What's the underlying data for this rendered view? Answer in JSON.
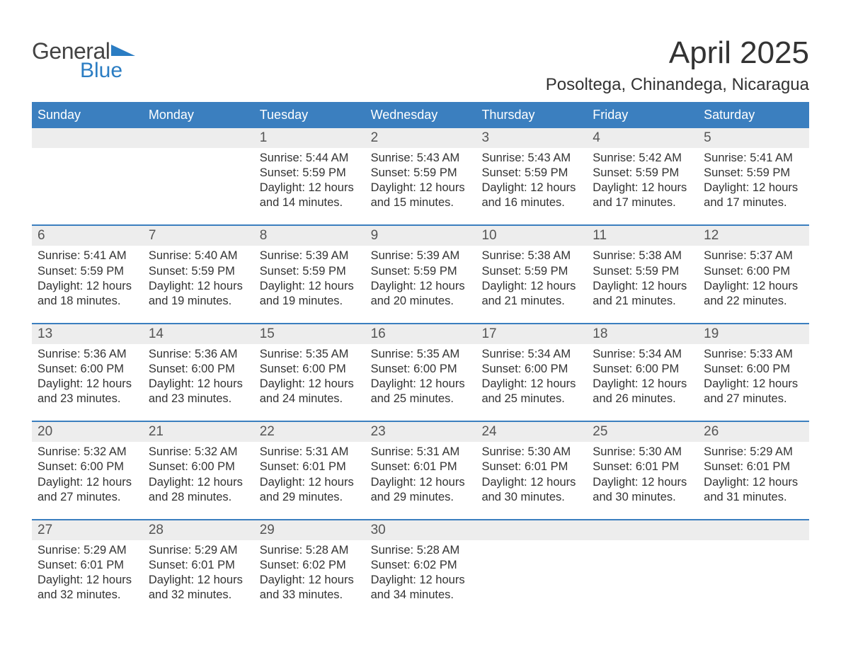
{
  "logo": {
    "word1": "General",
    "word2": "Blue",
    "brand_color": "#2b7dc3",
    "text_color": "#444444"
  },
  "title": "April 2025",
  "location": "Posoltega, Chinandega, Nicaragua",
  "colors": {
    "header_bg": "#3b7fbf",
    "header_text": "#ffffff",
    "daynum_bg": "#ededed",
    "daynum_text": "#555555",
    "body_text": "#333333",
    "rule": "#3b7fbf",
    "page_bg": "#ffffff"
  },
  "typography": {
    "title_fontsize": 44,
    "location_fontsize": 24,
    "dow_fontsize": 18,
    "daynum_fontsize": 19,
    "cell_fontsize": 16.5,
    "font_family": "Arial"
  },
  "day_names": [
    "Sunday",
    "Monday",
    "Tuesday",
    "Wednesday",
    "Thursday",
    "Friday",
    "Saturday"
  ],
  "weeks": [
    [
      {
        "n": "",
        "sunrise": "",
        "sunset": "",
        "daylight": ""
      },
      {
        "n": "",
        "sunrise": "",
        "sunset": "",
        "daylight": ""
      },
      {
        "n": "1",
        "sunrise": "Sunrise: 5:44 AM",
        "sunset": "Sunset: 5:59 PM",
        "daylight": "Daylight: 12 hours and 14 minutes."
      },
      {
        "n": "2",
        "sunrise": "Sunrise: 5:43 AM",
        "sunset": "Sunset: 5:59 PM",
        "daylight": "Daylight: 12 hours and 15 minutes."
      },
      {
        "n": "3",
        "sunrise": "Sunrise: 5:43 AM",
        "sunset": "Sunset: 5:59 PM",
        "daylight": "Daylight: 12 hours and 16 minutes."
      },
      {
        "n": "4",
        "sunrise": "Sunrise: 5:42 AM",
        "sunset": "Sunset: 5:59 PM",
        "daylight": "Daylight: 12 hours and 17 minutes."
      },
      {
        "n": "5",
        "sunrise": "Sunrise: 5:41 AM",
        "sunset": "Sunset: 5:59 PM",
        "daylight": "Daylight: 12 hours and 17 minutes."
      }
    ],
    [
      {
        "n": "6",
        "sunrise": "Sunrise: 5:41 AM",
        "sunset": "Sunset: 5:59 PM",
        "daylight": "Daylight: 12 hours and 18 minutes."
      },
      {
        "n": "7",
        "sunrise": "Sunrise: 5:40 AM",
        "sunset": "Sunset: 5:59 PM",
        "daylight": "Daylight: 12 hours and 19 minutes."
      },
      {
        "n": "8",
        "sunrise": "Sunrise: 5:39 AM",
        "sunset": "Sunset: 5:59 PM",
        "daylight": "Daylight: 12 hours and 19 minutes."
      },
      {
        "n": "9",
        "sunrise": "Sunrise: 5:39 AM",
        "sunset": "Sunset: 5:59 PM",
        "daylight": "Daylight: 12 hours and 20 minutes."
      },
      {
        "n": "10",
        "sunrise": "Sunrise: 5:38 AM",
        "sunset": "Sunset: 5:59 PM",
        "daylight": "Daylight: 12 hours and 21 minutes."
      },
      {
        "n": "11",
        "sunrise": "Sunrise: 5:38 AM",
        "sunset": "Sunset: 5:59 PM",
        "daylight": "Daylight: 12 hours and 21 minutes."
      },
      {
        "n": "12",
        "sunrise": "Sunrise: 5:37 AM",
        "sunset": "Sunset: 6:00 PM",
        "daylight": "Daylight: 12 hours and 22 minutes."
      }
    ],
    [
      {
        "n": "13",
        "sunrise": "Sunrise: 5:36 AM",
        "sunset": "Sunset: 6:00 PM",
        "daylight": "Daylight: 12 hours and 23 minutes."
      },
      {
        "n": "14",
        "sunrise": "Sunrise: 5:36 AM",
        "sunset": "Sunset: 6:00 PM",
        "daylight": "Daylight: 12 hours and 23 minutes."
      },
      {
        "n": "15",
        "sunrise": "Sunrise: 5:35 AM",
        "sunset": "Sunset: 6:00 PM",
        "daylight": "Daylight: 12 hours and 24 minutes."
      },
      {
        "n": "16",
        "sunrise": "Sunrise: 5:35 AM",
        "sunset": "Sunset: 6:00 PM",
        "daylight": "Daylight: 12 hours and 25 minutes."
      },
      {
        "n": "17",
        "sunrise": "Sunrise: 5:34 AM",
        "sunset": "Sunset: 6:00 PM",
        "daylight": "Daylight: 12 hours and 25 minutes."
      },
      {
        "n": "18",
        "sunrise": "Sunrise: 5:34 AM",
        "sunset": "Sunset: 6:00 PM",
        "daylight": "Daylight: 12 hours and 26 minutes."
      },
      {
        "n": "19",
        "sunrise": "Sunrise: 5:33 AM",
        "sunset": "Sunset: 6:00 PM",
        "daylight": "Daylight: 12 hours and 27 minutes."
      }
    ],
    [
      {
        "n": "20",
        "sunrise": "Sunrise: 5:32 AM",
        "sunset": "Sunset: 6:00 PM",
        "daylight": "Daylight: 12 hours and 27 minutes."
      },
      {
        "n": "21",
        "sunrise": "Sunrise: 5:32 AM",
        "sunset": "Sunset: 6:00 PM",
        "daylight": "Daylight: 12 hours and 28 minutes."
      },
      {
        "n": "22",
        "sunrise": "Sunrise: 5:31 AM",
        "sunset": "Sunset: 6:01 PM",
        "daylight": "Daylight: 12 hours and 29 minutes."
      },
      {
        "n": "23",
        "sunrise": "Sunrise: 5:31 AM",
        "sunset": "Sunset: 6:01 PM",
        "daylight": "Daylight: 12 hours and 29 minutes."
      },
      {
        "n": "24",
        "sunrise": "Sunrise: 5:30 AM",
        "sunset": "Sunset: 6:01 PM",
        "daylight": "Daylight: 12 hours and 30 minutes."
      },
      {
        "n": "25",
        "sunrise": "Sunrise: 5:30 AM",
        "sunset": "Sunset: 6:01 PM",
        "daylight": "Daylight: 12 hours and 30 minutes."
      },
      {
        "n": "26",
        "sunrise": "Sunrise: 5:29 AM",
        "sunset": "Sunset: 6:01 PM",
        "daylight": "Daylight: 12 hours and 31 minutes."
      }
    ],
    [
      {
        "n": "27",
        "sunrise": "Sunrise: 5:29 AM",
        "sunset": "Sunset: 6:01 PM",
        "daylight": "Daylight: 12 hours and 32 minutes."
      },
      {
        "n": "28",
        "sunrise": "Sunrise: 5:29 AM",
        "sunset": "Sunset: 6:01 PM",
        "daylight": "Daylight: 12 hours and 32 minutes."
      },
      {
        "n": "29",
        "sunrise": "Sunrise: 5:28 AM",
        "sunset": "Sunset: 6:02 PM",
        "daylight": "Daylight: 12 hours and 33 minutes."
      },
      {
        "n": "30",
        "sunrise": "Sunrise: 5:28 AM",
        "sunset": "Sunset: 6:02 PM",
        "daylight": "Daylight: 12 hours and 34 minutes."
      },
      {
        "n": "",
        "sunrise": "",
        "sunset": "",
        "daylight": ""
      },
      {
        "n": "",
        "sunrise": "",
        "sunset": "",
        "daylight": ""
      },
      {
        "n": "",
        "sunrise": "",
        "sunset": "",
        "daylight": ""
      }
    ]
  ]
}
